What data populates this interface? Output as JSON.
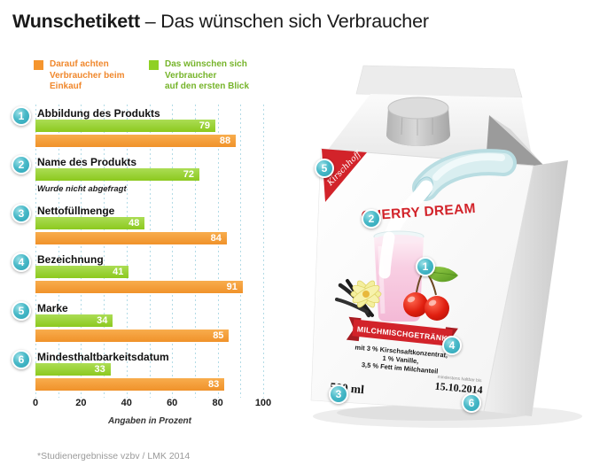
{
  "title": {
    "bold": "Wunschetikett",
    "rest": " – Das wünschen sich Verbraucher"
  },
  "legend": {
    "orange_label": "Darauf achten\nVerbraucher beim\nEinkauf",
    "green_label": "Das wünschen sich\nVerbraucher\nauf den ersten Blick"
  },
  "chart_data": {
    "type": "bar",
    "orientation": "horizontal",
    "categories": [
      "Abbildung des Produkts",
      "Name des Produkts",
      "Nettofüllmenge",
      "Bezeichnung",
      "Marke",
      "Mindesthaltbarkeitsdatum"
    ],
    "series": [
      {
        "name": "Das wünschen sich Verbraucher auf den ersten Blick",
        "color": "#8fd024",
        "values": [
          79,
          72,
          48,
          41,
          34,
          33
        ]
      },
      {
        "name": "Darauf achten Verbraucher beim Einkauf",
        "color": "#f49b33",
        "values": [
          88,
          null,
          84,
          91,
          85,
          83
        ]
      }
    ],
    "missing_note": "Wurde nicht abgefragt",
    "xlabel": "Angaben in Prozent",
    "xticks": [
      0,
      20,
      40,
      60,
      80,
      100
    ],
    "xlim": [
      0,
      100
    ],
    "grid": "vertical-dotted-every-10",
    "legend_position": "top"
  },
  "carton": {
    "brand": "Kirschhoff",
    "product_name": "CHERRY DREAM",
    "category_ribbon": "MILCHMISCHGETRÄNK",
    "ingredients": [
      "mit 3 % Kirschsaftkonzentrat,",
      "1 % Vanille,",
      "3,5 % Fett im Milchanteil"
    ],
    "volume": "500 ml",
    "best_before_label": "mindestens haltbar bis",
    "best_before_date": "15.10.2014",
    "badges": [
      "1",
      "2",
      "3",
      "4",
      "5",
      "6"
    ]
  },
  "footer": "*Studienergebnisse vzbv / LMK 2014",
  "colors": {
    "accent_teal": "#3ab3c3",
    "bar_green": "#8fd024",
    "bar_orange": "#f49b33",
    "brand_red": "#d2232a",
    "grid_blue": "#b2dbe6"
  }
}
